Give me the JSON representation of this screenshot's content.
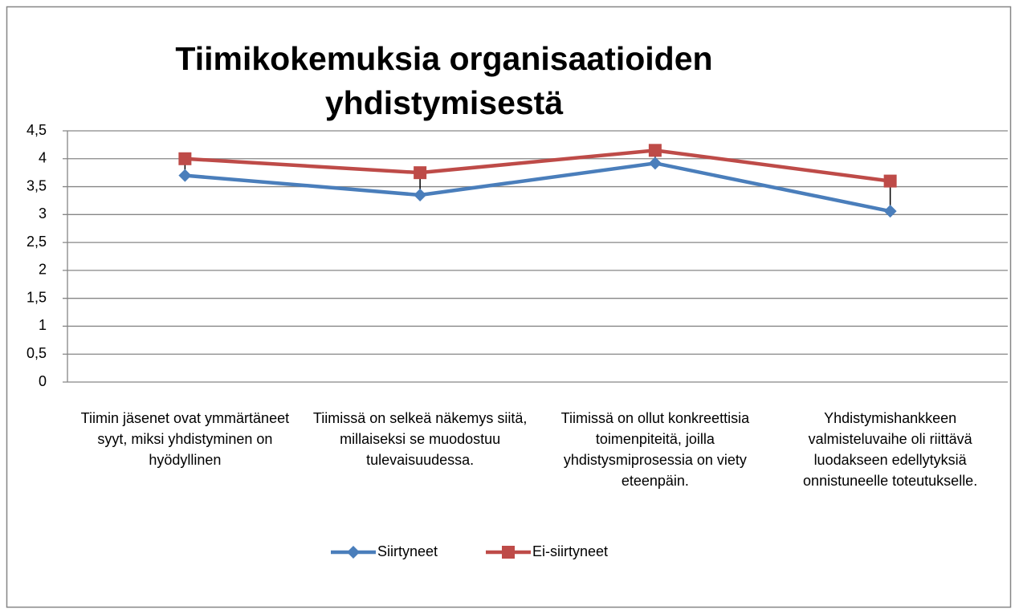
{
  "chart_data": {
    "type": "line",
    "title": "Tiimikokemuksia organisaatioiden yhdistymisestä",
    "categories": [
      "Tiimin jäsenet ovat ymmärtäneet syyt, miksi yhdistyminen on hyödyllinen",
      "Tiimissä on selkeä näkemys siitä, millaiseksi se muodostuu tulevaisuudessa.",
      "Tiimissä on ollut konkreettisia toimenpiteitä, joilla yhdistysmiprosessia on viety eteenpäin.",
      "Yhdistymishankkeen valmisteluvaihe oli riittävä luodakseen edellytyksiä onnistuneelle toteutukselle."
    ],
    "series": [
      {
        "name": "Siirtyneet",
        "color": "#4a7ebb",
        "marker": "diamond",
        "values": [
          3.7,
          3.35,
          3.92,
          3.06
        ]
      },
      {
        "name": "Ei-siirtyneet",
        "color": "#be4b48",
        "marker": "square",
        "values": [
          4.0,
          3.75,
          4.15,
          3.6
        ]
      }
    ],
    "ylim": [
      0,
      4.5
    ],
    "yticks": [
      0,
      {
        "value": 0.5,
        "label": "0,5"
      },
      1,
      {
        "value": 1.5,
        "label": "1,5"
      },
      2,
      {
        "value": 2.5,
        "label": "2,5"
      },
      3,
      {
        "value": 3.5,
        "label": "3,5"
      },
      4,
      {
        "value": 4.5,
        "label": "4,5"
      }
    ],
    "grid": true,
    "high_low_lines": true,
    "legend": "bottom"
  }
}
